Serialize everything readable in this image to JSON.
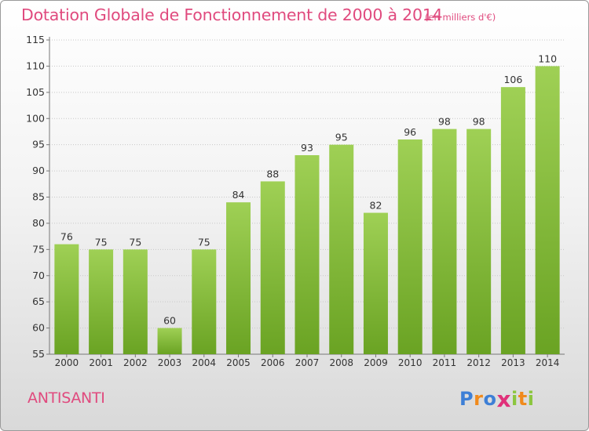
{
  "title": "Dotation Globale de Fonctionnement de 2000 à 2014",
  "unit_note": "(en milliers d'€)",
  "commune": "ANTISANTI",
  "logo": {
    "text": "Proxiti",
    "letters": [
      {
        "ch": "P",
        "color": "#3d7fd6"
      },
      {
        "ch": "r",
        "color": "#f08a1c"
      },
      {
        "ch": "o",
        "color": "#3d7fd6"
      },
      {
        "ch": "x",
        "color": "#e0317a"
      },
      {
        "ch": "i",
        "color": "#8cc63f"
      },
      {
        "ch": "t",
        "color": "#f08a1c"
      },
      {
        "ch": "i",
        "color": "#8cc63f"
      }
    ]
  },
  "colors": {
    "bar_top": "#9fd055",
    "bar_bottom": "#6aa323",
    "title": "#e04a7e",
    "grid": "#c8c8c8",
    "text": "#333333"
  },
  "chart_data": {
    "type": "bar",
    "title": "Dotation Globale de Fonctionnement de 2000 à 2014",
    "subtitle": "(en milliers d'€)",
    "xlabel": "",
    "ylabel": "",
    "categories": [
      "2000",
      "2001",
      "2002",
      "2003",
      "2004",
      "2005",
      "2006",
      "2007",
      "2008",
      "2009",
      "2010",
      "2011",
      "2012",
      "2013",
      "2014"
    ],
    "values": [
      76,
      75,
      75,
      60,
      75,
      84,
      88,
      93,
      95,
      82,
      96,
      98,
      98,
      106,
      110
    ],
    "ylim": [
      55,
      115
    ],
    "yticks": [
      55,
      60,
      65,
      70,
      75,
      80,
      85,
      90,
      95,
      100,
      105,
      110,
      115
    ],
    "grid": true,
    "data_labels": true
  }
}
